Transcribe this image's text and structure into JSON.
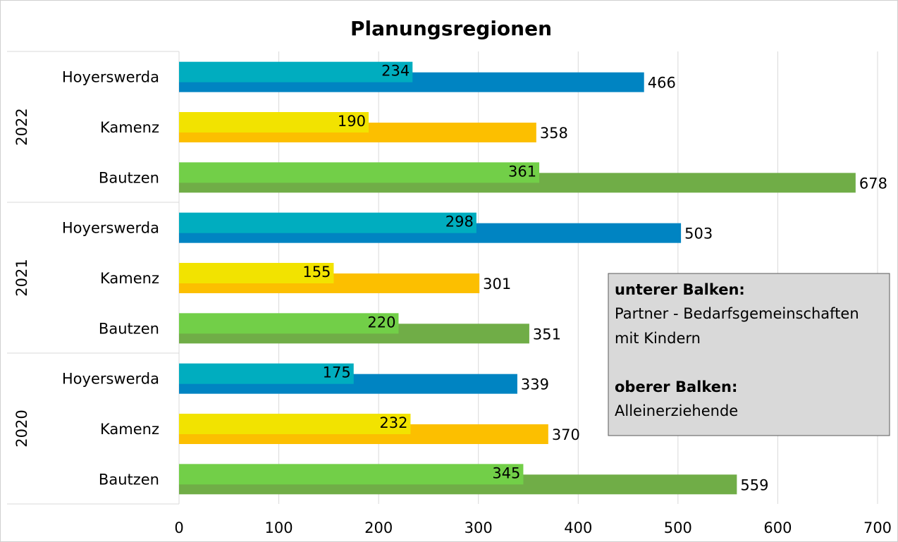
{
  "chart_data": {
    "type": "bar",
    "orientation": "horizontal",
    "title": "Planungsregionen",
    "groups": [
      {
        "name": "2022",
        "categories": [
          "Hoyerswerda",
          "Kamenz",
          "Bautzen"
        ]
      },
      {
        "name": "2021",
        "categories": [
          "Hoyerswerda",
          "Kamenz",
          "Bautzen"
        ]
      },
      {
        "name": "2020",
        "categories": [
          "Hoyerswerda",
          "Kamenz",
          "Bautzen"
        ]
      }
    ],
    "series": [
      {
        "position": "lower",
        "colors": [
          "#0084c2",
          "#fcbf00",
          "#70ad47"
        ],
        "values": [
          [
            466,
            358,
            678
          ],
          [
            503,
            301,
            351
          ],
          [
            339,
            370,
            559
          ]
        ]
      },
      {
        "position": "upper",
        "colors": [
          "#00adbf",
          "#f2e300",
          "#72cf48"
        ],
        "values": [
          [
            234,
            190,
            361
          ],
          [
            298,
            155,
            220
          ],
          [
            175,
            232,
            345
          ]
        ]
      }
    ],
    "xlim": [
      0,
      700
    ],
    "xticks": [
      0,
      100,
      200,
      300,
      400,
      500,
      600,
      700
    ],
    "grid": true,
    "annotation": {
      "lower_heading": "unterer Balken:",
      "lower_text": [
        "Partner - Bedarfsgemeinschaften",
        "mit Kindern"
      ],
      "upper_heading": "oberer Balken:",
      "upper_text": "Alleinerziehende"
    }
  }
}
